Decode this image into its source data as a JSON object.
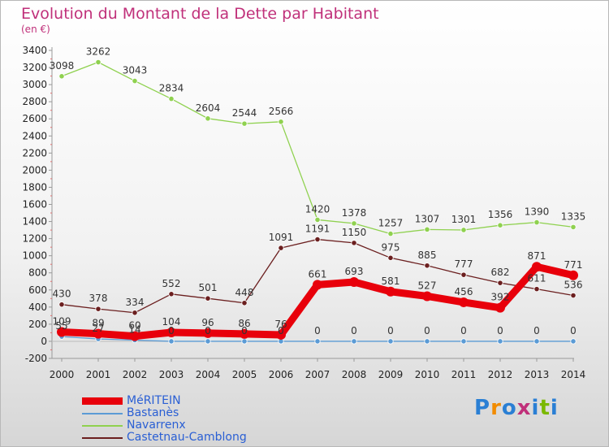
{
  "title": "Evolution du Montant de la Dette par Habitant",
  "subtitle": "(en €)",
  "logo": {
    "text": "Proxiti",
    "colors": [
      "#2a7fd4",
      "#f28c00",
      "#2a7fd4",
      "#c0307a",
      "#2a7fd4",
      "#7ab800",
      "#2a7fd4"
    ]
  },
  "chart_data": {
    "type": "line",
    "title": "Evolution du Montant de la Dette par Habitant",
    "ylabel": "(en €)",
    "x": [
      "2000",
      "2001",
      "2002",
      "2003",
      "2004",
      "2005",
      "2006",
      "2007",
      "2008",
      "2009",
      "2010",
      "2011",
      "2012",
      "2013",
      "2014"
    ],
    "ylim": [
      -200,
      3400
    ],
    "yticks": [
      -200,
      0,
      200,
      400,
      600,
      800,
      1000,
      1200,
      1400,
      1600,
      1800,
      2000,
      2200,
      2400,
      2600,
      2800,
      3000,
      3200,
      3400
    ],
    "grid": false,
    "legend_position": "bottom-left",
    "series": [
      {
        "name": "MéRITEIN",
        "color": "#e8000b",
        "values": [
          109,
          89,
          60,
          104,
          96,
          86,
          76,
          661,
          693,
          581,
          527,
          456,
          392,
          871,
          771
        ]
      },
      {
        "name": "Bastanès",
        "color": "#5b9bd5",
        "values": [
          55,
          27,
          14,
          0,
          0,
          0,
          0,
          0,
          0,
          0,
          0,
          0,
          0,
          0,
          0
        ]
      },
      {
        "name": "Navarrenx",
        "color": "#8fd14f",
        "values": [
          3098,
          3262,
          3043,
          2834,
          2604,
          2544,
          2566,
          1420,
          1378,
          1257,
          1307,
          1301,
          1356,
          1390,
          1335
        ]
      },
      {
        "name": "Castetnau-Camblong",
        "color": "#6b1f1f",
        "values": [
          430,
          378,
          334,
          552,
          501,
          448,
          1091,
          1191,
          1150,
          975,
          885,
          777,
          682,
          611,
          536
        ]
      }
    ]
  }
}
